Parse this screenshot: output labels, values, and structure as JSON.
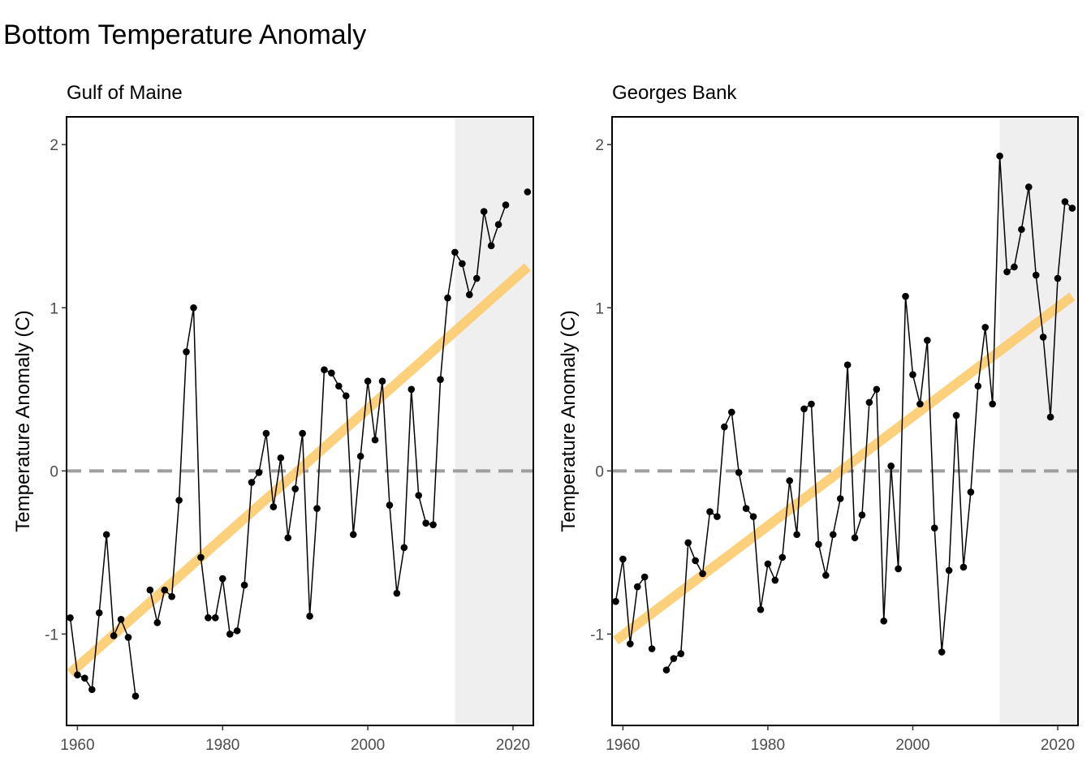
{
  "title": "Bottom Temperature Anomaly",
  "colors": {
    "trend": "#FDCB6E",
    "points": "#000000",
    "reference_line": "#9E9E9E",
    "shade": "#EFEFEF",
    "panel_border": "#000000"
  },
  "chart_data": [
    {
      "type": "line",
      "title": "Gulf of Maine",
      "xlabel": "",
      "ylabel": "Temperature Anomaly (C)",
      "xlim": [
        1958.5,
        2022.8
      ],
      "ylim": [
        -1.56,
        2.17
      ],
      "x_ticks": [
        1960,
        1980,
        2000,
        2020
      ],
      "y_ticks": [
        -1,
        0,
        1,
        2
      ],
      "reference_line_y": 0,
      "shaded_region_x": [
        2012,
        2022.8
      ],
      "grid": false,
      "trend": {
        "x": [
          1959,
          2022
        ],
        "y": [
          -1.24,
          1.25
        ]
      },
      "series": [
        {
          "points": [
            [
              1959,
              -0.9
            ],
            [
              1960,
              -1.25
            ],
            [
              1961,
              -1.27
            ],
            [
              1962,
              -1.34
            ],
            [
              1963,
              -0.87
            ],
            [
              1964,
              -0.39
            ],
            [
              1965,
              -1.01
            ],
            [
              1966,
              -0.91
            ],
            [
              1967,
              -1.02
            ],
            [
              1968,
              -1.38
            ],
            [
              1970,
              -0.73
            ],
            [
              1971,
              -0.93
            ],
            [
              1972,
              -0.73
            ],
            [
              1973,
              -0.77
            ],
            [
              1974,
              -0.18
            ],
            [
              1975,
              0.73
            ],
            [
              1976,
              1.0
            ],
            [
              1977,
              -0.53
            ],
            [
              1978,
              -0.9
            ],
            [
              1979,
              -0.9
            ],
            [
              1980,
              -0.66
            ],
            [
              1981,
              -1.0
            ],
            [
              1982,
              -0.98
            ],
            [
              1983,
              -0.7
            ],
            [
              1984,
              -0.07
            ],
            [
              1985,
              -0.01
            ],
            [
              1986,
              0.23
            ],
            [
              1987,
              -0.22
            ],
            [
              1988,
              0.08
            ],
            [
              1989,
              -0.41
            ],
            [
              1990,
              -0.11
            ],
            [
              1991,
              0.23
            ],
            [
              1992,
              -0.89
            ],
            [
              1993,
              -0.23
            ],
            [
              1994,
              0.62
            ],
            [
              1995,
              0.6
            ],
            [
              1996,
              0.52
            ],
            [
              1997,
              0.46
            ],
            [
              1998,
              -0.39
            ],
            [
              1999,
              0.09
            ],
            [
              2000,
              0.55
            ],
            [
              2001,
              0.19
            ],
            [
              2002,
              0.55
            ],
            [
              2003,
              -0.21
            ],
            [
              2004,
              -0.75
            ],
            [
              2005,
              -0.47
            ],
            [
              2006,
              0.5
            ],
            [
              2007,
              -0.15
            ],
            [
              2008,
              -0.32
            ],
            [
              2009,
              -0.33
            ],
            [
              2010,
              0.56
            ],
            [
              2011,
              1.06
            ],
            [
              2012,
              1.34
            ],
            [
              2013,
              1.27
            ],
            [
              2014,
              1.08
            ],
            [
              2015,
              1.18
            ],
            [
              2016,
              1.59
            ],
            [
              2017,
              1.38
            ],
            [
              2018,
              1.51
            ],
            [
              2019,
              1.63
            ],
            [
              2022,
              1.71
            ]
          ]
        }
      ]
    },
    {
      "type": "line",
      "title": "Georges Bank",
      "xlabel": "",
      "ylabel": "Temperature Anomaly (C)",
      "xlim": [
        1958.5,
        2022.8
      ],
      "ylim": [
        -1.56,
        2.17
      ],
      "x_ticks": [
        1960,
        1980,
        2000,
        2020
      ],
      "y_ticks": [
        -1,
        0,
        1,
        2
      ],
      "reference_line_y": 0,
      "shaded_region_x": [
        2012,
        2022.8
      ],
      "grid": false,
      "trend": {
        "x": [
          1959,
          2022
        ],
        "y": [
          -1.04,
          1.07
        ]
      },
      "series": [
        {
          "points": [
            [
              1959,
              -0.8
            ],
            [
              1960,
              -0.54
            ],
            [
              1961,
              -1.06
            ],
            [
              1962,
              -0.71
            ],
            [
              1963,
              -0.65
            ],
            [
              1964,
              -1.09
            ],
            [
              1966,
              -1.22
            ],
            [
              1967,
              -1.15
            ],
            [
              1968,
              -1.12
            ],
            [
              1969,
              -0.44
            ],
            [
              1970,
              -0.55
            ],
            [
              1971,
              -0.63
            ],
            [
              1972,
              -0.25
            ],
            [
              1973,
              -0.28
            ],
            [
              1974,
              0.27
            ],
            [
              1975,
              0.36
            ],
            [
              1976,
              -0.01
            ],
            [
              1977,
              -0.23
            ],
            [
              1978,
              -0.28
            ],
            [
              1979,
              -0.85
            ],
            [
              1980,
              -0.57
            ],
            [
              1981,
              -0.67
            ],
            [
              1982,
              -0.53
            ],
            [
              1983,
              -0.06
            ],
            [
              1984,
              -0.39
            ],
            [
              1985,
              0.38
            ],
            [
              1986,
              0.41
            ],
            [
              1987,
              -0.45
            ],
            [
              1988,
              -0.64
            ],
            [
              1989,
              -0.39
            ],
            [
              1990,
              -0.17
            ],
            [
              1991,
              0.65
            ],
            [
              1992,
              -0.41
            ],
            [
              1993,
              -0.27
            ],
            [
              1994,
              0.42
            ],
            [
              1995,
              0.5
            ],
            [
              1996,
              -0.92
            ],
            [
              1997,
              0.03
            ],
            [
              1998,
              -0.6
            ],
            [
              1999,
              1.07
            ],
            [
              2000,
              0.59
            ],
            [
              2001,
              0.41
            ],
            [
              2002,
              0.8
            ],
            [
              2003,
              -0.35
            ],
            [
              2004,
              -1.11
            ],
            [
              2005,
              -0.61
            ],
            [
              2006,
              0.34
            ],
            [
              2007,
              -0.59
            ],
            [
              2008,
              -0.13
            ],
            [
              2009,
              0.52
            ],
            [
              2010,
              0.88
            ],
            [
              2011,
              0.41
            ],
            [
              2012,
              1.93
            ],
            [
              2013,
              1.22
            ],
            [
              2014,
              1.25
            ],
            [
              2015,
              1.48
            ],
            [
              2016,
              1.74
            ],
            [
              2017,
              1.2
            ],
            [
              2018,
              0.82
            ],
            [
              2019,
              0.33
            ],
            [
              2020,
              1.18
            ],
            [
              2021,
              1.65
            ],
            [
              2022,
              1.61
            ]
          ]
        }
      ]
    }
  ]
}
